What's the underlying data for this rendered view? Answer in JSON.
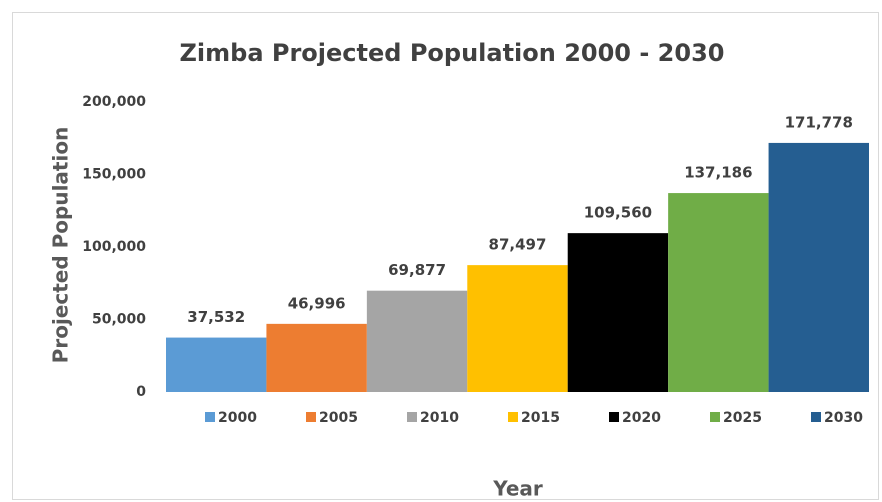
{
  "chart_data": {
    "type": "bar",
    "title": "Zimba Projected Population 2000 - 2030",
    "x_label": "Year",
    "y_label": "Projected Population",
    "series": [
      {
        "name": "2000",
        "color": "#5b9bd5",
        "values": [
          37532
        ],
        "value_labels": [
          "37,532"
        ]
      },
      {
        "name": "2005",
        "color": "#ed7d31",
        "values": [
          46996
        ],
        "value_labels": [
          "46,996"
        ]
      },
      {
        "name": "2010",
        "color": "#a5a5a5",
        "values": [
          69877
        ],
        "value_labels": [
          "69,877"
        ]
      },
      {
        "name": "2015",
        "color": "#ffc000",
        "values": [
          87497
        ],
        "value_labels": [
          "87,497"
        ]
      },
      {
        "name": "2020",
        "color": "#000000",
        "values": [
          109560
        ],
        "value_labels": [
          "109,560"
        ]
      },
      {
        "name": "2025",
        "color": "#70ad47",
        "values": [
          137186
        ],
        "value_labels": [
          "137,186"
        ]
      },
      {
        "name": "2030",
        "color": "#255e91",
        "values": [
          171778
        ],
        "value_labels": [
          "171,778"
        ]
      }
    ],
    "ylim": [
      0,
      200000
    ],
    "yticks": [
      0,
      {
        "value": 50000,
        "label": "50,000"
      },
      {
        "value": 100000,
        "label": "100,000"
      },
      {
        "value": 150000,
        "label": "150,000"
      },
      {
        "value": 200000,
        "label": "200,000"
      }
    ],
    "grid": false,
    "legend": "bottom"
  }
}
